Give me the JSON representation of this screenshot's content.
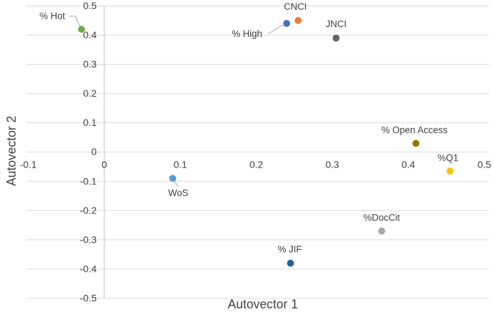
{
  "chart_data": {
    "type": "scatter",
    "title": "",
    "xlabel": "Autovector 1",
    "ylabel": "Autovector 2",
    "xlim": [
      -0.1,
      0.5
    ],
    "ylim": [
      -0.5,
      0.5
    ],
    "x_tick_labels": [
      "-0.1",
      "0",
      "0.1",
      "0.2",
      "0.3",
      "0.4",
      "0.5"
    ],
    "y_tick_labels": [
      "0.5",
      "0.4",
      "0.3",
      "0.2",
      "0.1",
      "0",
      "-0.1",
      "-0.2",
      "-0.3",
      "-0.4",
      "-0.5"
    ],
    "grid": "horizontal-only",
    "legend": "none",
    "colors": {
      "gridline": "#D9D9D9",
      "axis_line": "#BFBFBF",
      "text": "#404040",
      "leader_line": "#A6A6A6",
      "background": "#FFFFFF"
    },
    "points": [
      {
        "label": "% Hot",
        "x": -0.03,
        "y": 0.42,
        "color": "#70AD47",
        "label_offset": [
          -42,
          -19
        ],
        "leader": [
          [
            -18,
            -19
          ],
          [
            -9,
            -19
          ],
          [
            -2,
            -4
          ]
        ]
      },
      {
        "label": "% High",
        "x": 0.24,
        "y": 0.44,
        "color": "#4472C4",
        "label_offset": [
          -57,
          15
        ],
        "leader": [
          [
            -27,
            15
          ],
          [
            -5,
            2
          ]
        ]
      },
      {
        "label": "CNCI",
        "x": 0.255,
        "y": 0.45,
        "color": "#ED7D31",
        "label_offset": [
          -4,
          -20
        ]
      },
      {
        "label": "JNCI",
        "x": 0.305,
        "y": 0.39,
        "color": "#636363",
        "label_offset": [
          0,
          -20
        ]
      },
      {
        "label": "% Open Access",
        "x": 0.41,
        "y": 0.03,
        "color": "#997300",
        "label_offset": [
          -2,
          -19
        ]
      },
      {
        "label": "%Q1",
        "x": 0.455,
        "y": -0.065,
        "color": "#FFC000",
        "label_offset": [
          -3,
          -19
        ]
      },
      {
        "label": "WoS",
        "x": 0.09,
        "y": -0.09,
        "color": "#5B9BD5",
        "label_offset": [
          8,
          21
        ],
        "leader": [
          [
            2,
            3
          ],
          [
            8,
            12
          ]
        ]
      },
      {
        "label": "%DocCit",
        "x": 0.365,
        "y": -0.27,
        "color": "#A5A5A5",
        "label_offset": [
          0,
          -19
        ]
      },
      {
        "label": "% JIF",
        "x": 0.245,
        "y": -0.38,
        "color": "#255E91",
        "label_offset": [
          -1,
          -20
        ]
      }
    ]
  }
}
